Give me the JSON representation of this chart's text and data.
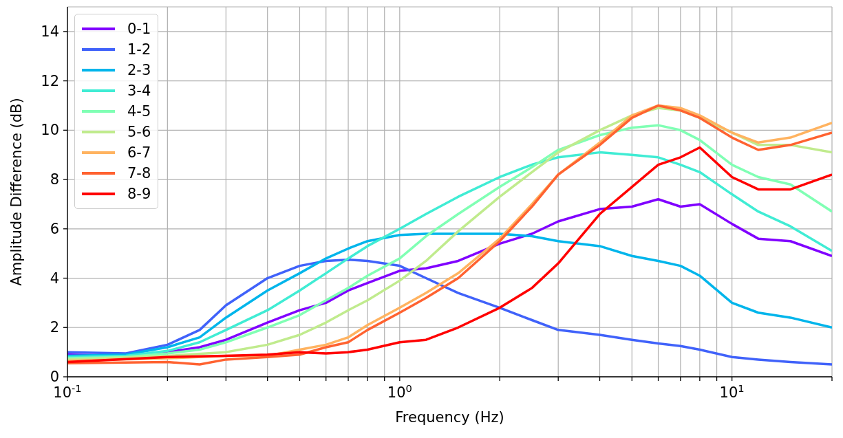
{
  "chart_data": {
    "type": "line",
    "xlabel": "Frequency (Hz)",
    "ylabel": "Amplitude Difference (dB)",
    "log": "x",
    "grid": true,
    "legend": "top left",
    "line_style": "solid",
    "marker": "none",
    "xlim": [
      0.1,
      20
    ],
    "ylim": [
      0,
      15
    ],
    "xticks": [
      {
        "value": 0.1,
        "label": "10$^{-1}$"
      },
      {
        "value": 0.2,
        "label": null
      },
      {
        "value": 0.3,
        "label": null
      },
      {
        "value": 0.4,
        "label": null
      },
      {
        "value": 0.5,
        "label": null
      },
      {
        "value": 0.6,
        "label": null
      },
      {
        "value": 0.7,
        "label": null
      },
      {
        "value": 0.8,
        "label": null
      },
      {
        "value": 0.9,
        "label": null
      },
      {
        "value": 1,
        "label": "10$^{0}$"
      },
      {
        "value": 2,
        "label": null
      },
      {
        "value": 3,
        "label": null
      },
      {
        "value": 4,
        "label": null
      },
      {
        "value": 5,
        "label": null
      },
      {
        "value": 6,
        "label": null
      },
      {
        "value": 7,
        "label": null
      },
      {
        "value": 8,
        "label": null
      },
      {
        "value": 9,
        "label": null
      },
      {
        "value": 10,
        "label": "10$^{1}$"
      },
      {
        "value": 20,
        "label": null
      }
    ],
    "yticks": [
      0,
      2,
      4,
      6,
      8,
      10,
      12,
      14
    ],
    "series": [
      {
        "name": "0-1",
        "color": "#8000ff",
        "x": [
          0.1,
          0.15,
          0.2,
          0.25,
          0.3,
          0.4,
          0.5,
          0.6,
          0.7,
          0.8,
          1,
          1.2,
          1.5,
          2,
          2.5,
          3,
          4,
          5,
          6,
          7,
          8,
          10,
          12,
          15,
          20
        ],
        "values": [
          0.9,
          0.85,
          1.0,
          1.2,
          1.5,
          2.2,
          2.7,
          3.0,
          3.5,
          3.8,
          4.3,
          4.4,
          4.7,
          5.4,
          5.8,
          6.3,
          6.8,
          6.9,
          7.2,
          6.9,
          7.0,
          6.2,
          5.6,
          5.5,
          4.9
        ]
      },
      {
        "name": "1-2",
        "color": "#4062fa",
        "x": [
          0.1,
          0.15,
          0.2,
          0.25,
          0.3,
          0.4,
          0.5,
          0.6,
          0.7,
          0.8,
          1,
          1.2,
          1.5,
          2,
          2.5,
          3,
          4,
          5,
          6,
          7,
          8,
          10,
          12,
          15,
          20
        ],
        "values": [
          1.0,
          0.95,
          1.3,
          1.9,
          2.9,
          4.0,
          4.5,
          4.7,
          4.75,
          4.7,
          4.5,
          4.0,
          3.4,
          2.8,
          2.3,
          1.9,
          1.7,
          1.5,
          1.35,
          1.25,
          1.1,
          0.8,
          0.7,
          0.6,
          0.5
        ]
      },
      {
        "name": "2-3",
        "color": "#00b5eb",
        "x": [
          0.1,
          0.15,
          0.2,
          0.25,
          0.3,
          0.4,
          0.5,
          0.6,
          0.7,
          0.8,
          1,
          1.2,
          1.5,
          2,
          2.5,
          3,
          4,
          5,
          6,
          7,
          8,
          10,
          12,
          15,
          20
        ],
        "values": [
          0.85,
          0.9,
          1.2,
          1.6,
          2.4,
          3.5,
          4.2,
          4.8,
          5.2,
          5.5,
          5.75,
          5.8,
          5.8,
          5.8,
          5.7,
          5.5,
          5.3,
          4.9,
          4.7,
          4.5,
          4.1,
          3.0,
          2.6,
          2.4,
          2.0
        ]
      },
      {
        "name": "3-4",
        "color": "#40ecd4",
        "x": [
          0.1,
          0.15,
          0.2,
          0.25,
          0.3,
          0.4,
          0.5,
          0.6,
          0.7,
          0.8,
          1,
          1.2,
          1.5,
          2,
          2.5,
          3,
          4,
          5,
          6,
          7,
          8,
          10,
          12,
          15,
          20
        ],
        "values": [
          0.8,
          0.85,
          1.05,
          1.4,
          1.9,
          2.7,
          3.5,
          4.2,
          4.8,
          5.3,
          6.0,
          6.6,
          7.3,
          8.1,
          8.6,
          8.9,
          9.1,
          9.0,
          8.9,
          8.6,
          8.3,
          7.4,
          6.7,
          6.1,
          5.1
        ]
      },
      {
        "name": "4-5",
        "color": "#80ffb4",
        "x": [
          0.1,
          0.15,
          0.2,
          0.25,
          0.3,
          0.4,
          0.5,
          0.6,
          0.7,
          0.8,
          1,
          1.2,
          1.5,
          2,
          2.5,
          3,
          4,
          5,
          6,
          7,
          8,
          10,
          12,
          15,
          20
        ],
        "values": [
          0.75,
          0.8,
          0.95,
          1.1,
          1.4,
          2.0,
          2.5,
          3.1,
          3.6,
          4.1,
          4.8,
          5.7,
          6.6,
          7.7,
          8.5,
          9.2,
          9.8,
          10.1,
          10.2,
          10.0,
          9.6,
          8.6,
          8.1,
          7.8,
          6.7
        ]
      },
      {
        "name": "5-6",
        "color": "#c0eb8d",
        "x": [
          0.1,
          0.2,
          0.3,
          0.4,
          0.5,
          0.6,
          0.7,
          0.8,
          1,
          1.2,
          1.5,
          2,
          2.5,
          3,
          4,
          5,
          6,
          7,
          8,
          10,
          12,
          15,
          20
        ],
        "values": [
          0.7,
          0.85,
          1.0,
          1.3,
          1.7,
          2.2,
          2.7,
          3.1,
          3.9,
          4.7,
          5.9,
          7.3,
          8.3,
          9.1,
          10.0,
          10.6,
          10.9,
          10.8,
          10.5,
          9.9,
          9.4,
          9.4,
          9.1
        ]
      },
      {
        "name": "6-7",
        "color": "#ffb360",
        "x": [
          0.1,
          0.2,
          0.3,
          0.4,
          0.5,
          0.6,
          0.7,
          0.8,
          1,
          1.2,
          1.5,
          2,
          2.5,
          3,
          4,
          5,
          6,
          7,
          8,
          10,
          12,
          15,
          20
        ],
        "values": [
          0.65,
          0.75,
          0.85,
          0.85,
          1.1,
          1.3,
          1.6,
          2.1,
          2.8,
          3.4,
          4.2,
          5.6,
          7.0,
          8.2,
          9.5,
          10.6,
          11.0,
          10.9,
          10.6,
          9.9,
          9.5,
          9.7,
          10.3
        ]
      },
      {
        "name": "7-8",
        "color": "#ff6230",
        "x": [
          0.1,
          0.2,
          0.25,
          0.3,
          0.4,
          0.5,
          0.6,
          0.7,
          0.8,
          1,
          1.2,
          1.5,
          2,
          2.5,
          3,
          4,
          5,
          6,
          7,
          8,
          10,
          12,
          15,
          20
        ],
        "values": [
          0.55,
          0.6,
          0.5,
          0.7,
          0.8,
          0.9,
          1.2,
          1.4,
          1.9,
          2.6,
          3.2,
          4.0,
          5.5,
          6.9,
          8.2,
          9.4,
          10.5,
          11.0,
          10.8,
          10.5,
          9.7,
          9.2,
          9.4,
          9.9
        ]
      },
      {
        "name": "8-9",
        "color": "#ff0000",
        "x": [
          0.1,
          0.2,
          0.3,
          0.4,
          0.5,
          0.6,
          0.7,
          0.8,
          1,
          1.2,
          1.5,
          2,
          2.5,
          3,
          4,
          5,
          6,
          7,
          8,
          10,
          12,
          15,
          20
        ],
        "values": [
          0.6,
          0.8,
          0.85,
          0.9,
          1.0,
          0.95,
          1.0,
          1.1,
          1.4,
          1.5,
          2.0,
          2.8,
          3.6,
          4.6,
          6.6,
          7.7,
          8.6,
          8.9,
          9.3,
          8.1,
          7.6,
          7.6,
          8.2
        ]
      }
    ]
  }
}
